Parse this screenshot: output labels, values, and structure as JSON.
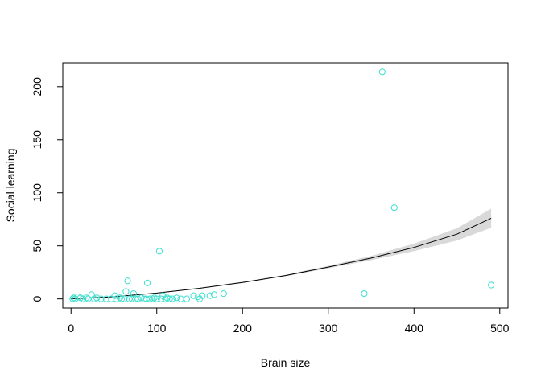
{
  "chart_data": {
    "type": "scatter",
    "title": "",
    "xlabel": "Brain size",
    "ylabel": "Social learning",
    "xlim": [
      -9.6,
      509.6
    ],
    "ylim": [
      -8.6,
      222.6
    ],
    "x_ticks": [
      0,
      100,
      200,
      300,
      400,
      500
    ],
    "y_ticks": [
      0,
      50,
      100,
      150,
      200
    ],
    "x_tick_labels": [
      "0",
      "100",
      "200",
      "300",
      "400",
      "500"
    ],
    "y_tick_labels": [
      "0",
      "50",
      "100",
      "150",
      "200"
    ],
    "grid": false,
    "legend": "none",
    "colors": {
      "points": "#40e0d0",
      "fit_line": "#000000",
      "ci_band": "#d9d9d9"
    },
    "points": [
      {
        "x": 363,
        "y": 214
      },
      {
        "x": 377,
        "y": 86
      },
      {
        "x": 103,
        "y": 45
      },
      {
        "x": 66,
        "y": 17
      },
      {
        "x": 89,
        "y": 15
      },
      {
        "x": 490,
        "y": 13
      },
      {
        "x": 64,
        "y": 7
      },
      {
        "x": 73,
        "y": 5
      },
      {
        "x": 342,
        "y": 5
      },
      {
        "x": 178,
        "y": 5
      },
      {
        "x": 167,
        "y": 4
      },
      {
        "x": 24,
        "y": 4
      },
      {
        "x": 162,
        "y": 3
      },
      {
        "x": 143,
        "y": 3
      },
      {
        "x": 153,
        "y": 3
      },
      {
        "x": 51,
        "y": 3
      },
      {
        "x": 107,
        "y": 3
      },
      {
        "x": 148,
        "y": 2
      },
      {
        "x": 8,
        "y": 2
      },
      {
        "x": 11,
        "y": 1
      },
      {
        "x": 3,
        "y": 1
      },
      {
        "x": 18,
        "y": 1
      },
      {
        "x": 30,
        "y": 1
      },
      {
        "x": 57,
        "y": 1
      },
      {
        "x": 82,
        "y": 1
      },
      {
        "x": 97,
        "y": 1
      },
      {
        "x": 112,
        "y": 1
      },
      {
        "x": 123,
        "y": 1
      },
      {
        "x": 2,
        "y": 0
      },
      {
        "x": 5,
        "y": 0
      },
      {
        "x": 14,
        "y": 0
      },
      {
        "x": 20,
        "y": 0
      },
      {
        "x": 27,
        "y": 0
      },
      {
        "x": 35,
        "y": 0
      },
      {
        "x": 41,
        "y": 0
      },
      {
        "x": 47,
        "y": 0
      },
      {
        "x": 53,
        "y": 0
      },
      {
        "x": 59,
        "y": 0
      },
      {
        "x": 62,
        "y": 0
      },
      {
        "x": 68,
        "y": 0
      },
      {
        "x": 71,
        "y": 0
      },
      {
        "x": 75,
        "y": 0
      },
      {
        "x": 78,
        "y": 0
      },
      {
        "x": 85,
        "y": 0
      },
      {
        "x": 88,
        "y": 0
      },
      {
        "x": 92,
        "y": 0
      },
      {
        "x": 95,
        "y": 0
      },
      {
        "x": 100,
        "y": 0
      },
      {
        "x": 105,
        "y": 0
      },
      {
        "x": 110,
        "y": 0
      },
      {
        "x": 115,
        "y": 0
      },
      {
        "x": 118,
        "y": 0
      },
      {
        "x": 128,
        "y": 0
      },
      {
        "x": 135,
        "y": 0
      },
      {
        "x": 150,
        "y": 0
      }
    ],
    "fit": {
      "x": [
        0,
        50,
        100,
        150,
        200,
        250,
        300,
        350,
        400,
        450,
        490
      ],
      "y": [
        0,
        2,
        5.5,
        10,
        15.5,
        22,
        30,
        38.5,
        48.5,
        61,
        76
      ],
      "lower": [
        0,
        1.9,
        5.2,
        9.5,
        14.9,
        21.3,
        28.8,
        36.5,
        45,
        55,
        67
      ],
      "upper": [
        0,
        2.1,
        5.8,
        10.5,
        16.1,
        22.7,
        31.2,
        40.5,
        52,
        66.5,
        85
      ]
    }
  }
}
